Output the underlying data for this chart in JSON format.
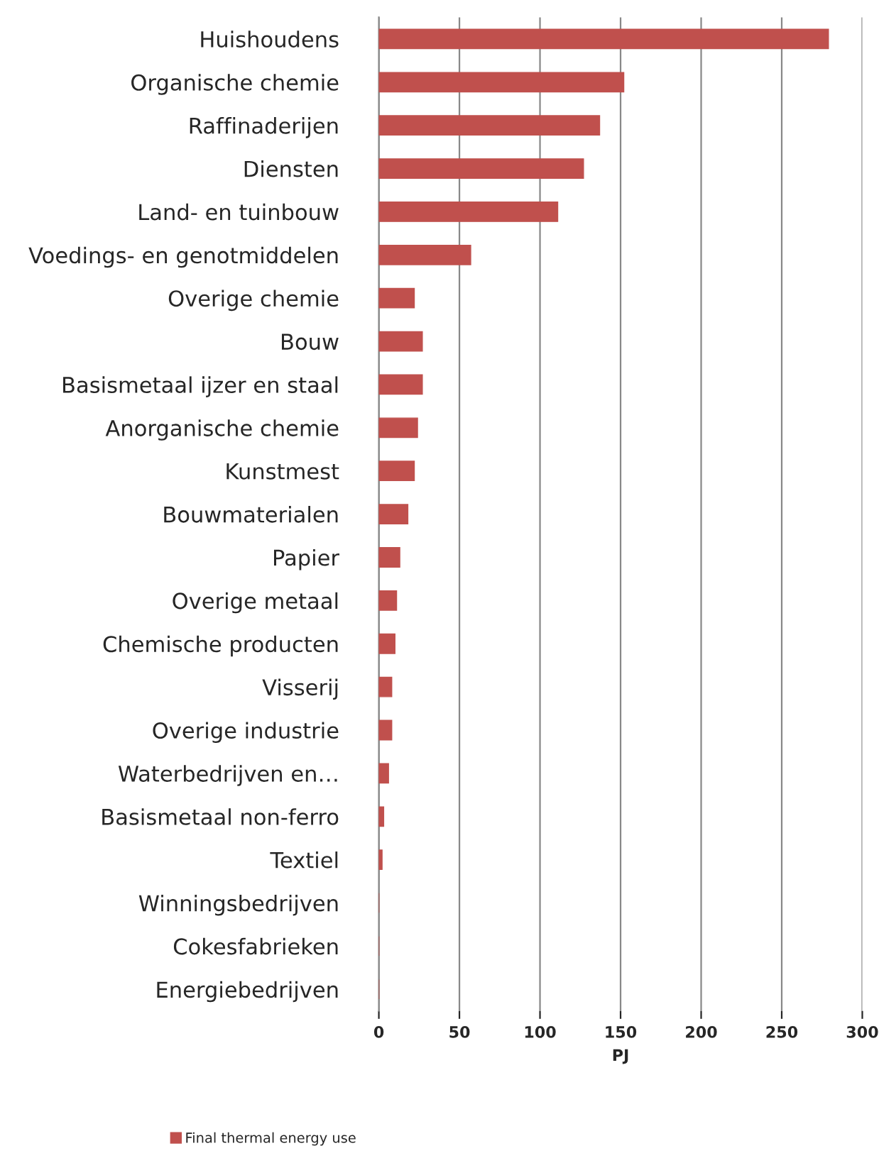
{
  "chart_data": {
    "type": "bar",
    "orientation": "horizontal",
    "categories": [
      "Huishoudens",
      "Organische chemie",
      "Raffinaderijen",
      "Diensten",
      "Land- en tuinbouw",
      "Voedings- en genotmiddelen",
      "Overige chemie",
      "Bouw",
      "Basismetaal ijzer en staal",
      "Anorganische chemie",
      "Kunstmest",
      "Bouwmaterialen",
      "Papier",
      "Overige metaal",
      "Chemische producten",
      "Visserij",
      "Overige industrie",
      "Waterbedrijven en…",
      "Basismetaal non-ferro",
      "Textiel",
      "Winningsbedrijven",
      "Cokesfabrieken",
      "Energiebedrijven"
    ],
    "series": [
      {
        "name": "Final thermal energy use",
        "color": "#c0504d",
        "values": [
          279,
          152,
          137,
          127,
          111,
          57,
          22,
          27,
          27,
          24,
          22,
          18,
          13,
          11,
          10,
          8,
          8,
          6,
          3,
          2,
          0,
          0,
          0
        ]
      }
    ],
    "xlabel": "PJ",
    "xlim": [
      0,
      300
    ],
    "xticks": [
      0,
      50,
      100,
      150,
      200,
      250,
      300
    ],
    "grid": "x",
    "legend": "bottom"
  }
}
